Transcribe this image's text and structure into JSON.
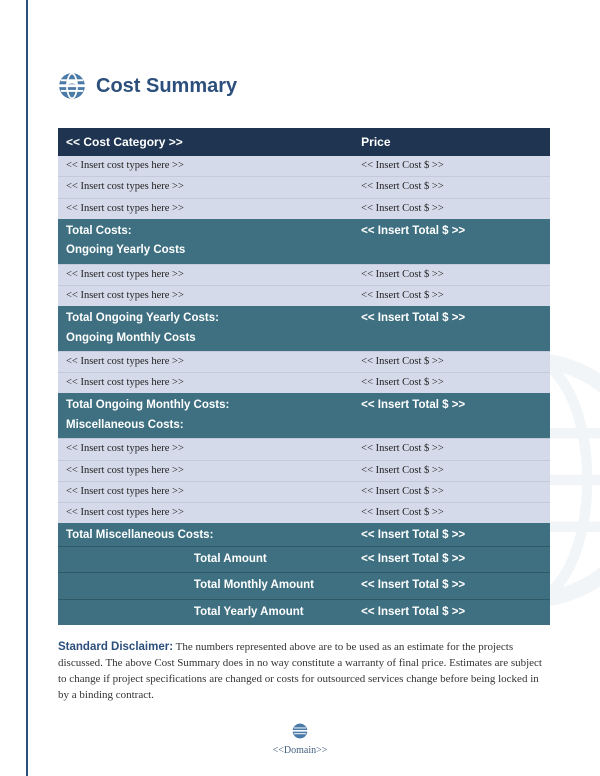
{
  "colors": {
    "rule": "#2c4f7c",
    "header_bg": "#1e3451",
    "section_bg": "#3e7081",
    "item_bg": "#d4dae9",
    "title": "#2c4f7c",
    "text": "#333333",
    "white": "#ffffff",
    "logo": "#4a7aa8"
  },
  "title": "Cost Summary",
  "table": {
    "header": {
      "category": "<< Cost Category >>",
      "price": "Price"
    },
    "sections": [
      {
        "items": [
          {
            "cat": "<< Insert cost types here >>",
            "price": "<< Insert Cost $ >>"
          },
          {
            "cat": "<< Insert cost types here >>",
            "price": "<< Insert Cost $ >>"
          },
          {
            "cat": "<< Insert cost types here >>",
            "price": "<< Insert Cost $ >>"
          }
        ],
        "total_label": "Total Costs:",
        "total_value": "<< Insert Total $ >>",
        "next_heading": "Ongoing Yearly Costs"
      },
      {
        "items": [
          {
            "cat": "<< Insert cost types here >>",
            "price": "<< Insert Cost $ >>"
          },
          {
            "cat": "<< Insert cost types here >>",
            "price": "<< Insert Cost $ >>"
          }
        ],
        "total_label": "Total Ongoing Yearly Costs:",
        "total_value": "<< Insert Total $ >>",
        "next_heading": "Ongoing Monthly Costs"
      },
      {
        "items": [
          {
            "cat": "<< Insert cost types here >>",
            "price": "<< Insert Cost $ >>"
          },
          {
            "cat": "<< Insert cost types here >>",
            "price": "<< Insert Cost $ >>"
          }
        ],
        "total_label": "Total Ongoing Monthly Costs:",
        "total_value": "<< Insert Total $ >>",
        "next_heading": "Miscellaneous Costs:"
      },
      {
        "items": [
          {
            "cat": "<< Insert cost types here >>",
            "price": "<< Insert Cost $ >>"
          },
          {
            "cat": "<< Insert cost types here >>",
            "price": "<< Insert Cost $ >>"
          },
          {
            "cat": "<< Insert cost types here >>",
            "price": "<< Insert Cost $ >>"
          },
          {
            "cat": "<< Insert cost types here >>",
            "price": "<< Insert Cost $ >>"
          }
        ],
        "total_label": "Total Miscellaneous Costs:",
        "total_value": "<< Insert Total $ >>",
        "next_heading": null
      }
    ],
    "grand_totals": [
      {
        "label": "Total Amount",
        "value": "<< Insert Total $ >>"
      },
      {
        "label": "Total Monthly Amount",
        "value": "<< Insert Total $ >>"
      },
      {
        "label": "Total Yearly Amount",
        "value": "<< Insert Total $ >>"
      }
    ]
  },
  "disclaimer": {
    "label": "Standard Disclaimer:",
    "text": "The numbers represented above are to be used as an estimate for the projects discussed. The above Cost Summary does in no way constitute a warranty of final price.  Estimates are subject to change if project specifications are changed or costs for outsourced services change before being locked in by a binding contract."
  },
  "footer": "<<Domain>>"
}
